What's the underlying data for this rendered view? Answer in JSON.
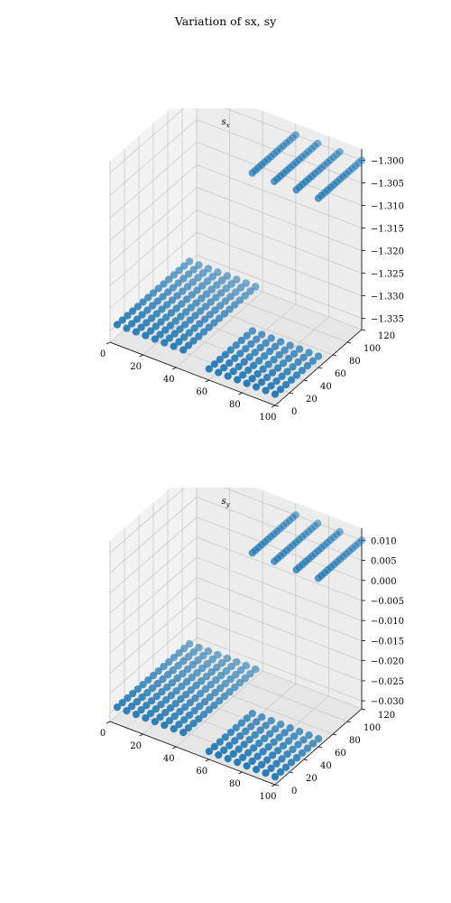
{
  "figure": {
    "title": "Variation of sx, sy"
  },
  "chart_data": [
    {
      "type": "scatter",
      "projection": "3d",
      "title": "s_x",
      "title_display": "sx",
      "xlim": [
        0,
        100
      ],
      "ylim": [
        0,
        120
      ],
      "zlim": [
        -1.3375,
        -1.2975
      ],
      "xticks": [
        0,
        20,
        40,
        60,
        80,
        100
      ],
      "yticks": [
        0,
        20,
        40,
        60,
        80,
        100,
        120
      ],
      "zticks": [
        "−1.300",
        "−1.305",
        "−1.310",
        "−1.315",
        "−1.320",
        "−1.325",
        "−1.330",
        "−1.335"
      ],
      "ztick_values": [
        -1.3,
        -1.305,
        -1.31,
        -1.315,
        -1.32,
        -1.325,
        -1.33,
        -1.335
      ],
      "grid": true,
      "marker_color": "#1f77b4",
      "clusters": [
        {
          "x_range": [
            0,
            40
          ],
          "y_range": [
            10,
            110
          ],
          "z": -1.335,
          "nx": 8,
          "ny": 15
        },
        {
          "x_range": [
            60,
            100
          ],
          "y_range": [
            0,
            60
          ],
          "z": -1.335,
          "nx": 8,
          "ny": 9
        },
        {
          "x_range": [
            60,
            100
          ],
          "y_range": [
            60,
            120
          ],
          "z": -1.3,
          "nx": 4,
          "ny": 15
        }
      ]
    },
    {
      "type": "scatter",
      "projection": "3d",
      "title": "s_y",
      "title_display": "sy",
      "xlim": [
        0,
        100
      ],
      "ylim": [
        0,
        120
      ],
      "zlim": [
        -0.032,
        0.013
      ],
      "xticks": [
        0,
        20,
        40,
        60,
        80,
        100
      ],
      "yticks": [
        0,
        20,
        40,
        60,
        80,
        100,
        120
      ],
      "zticks": [
        "0.010",
        "0.005",
        "0.000",
        "−0.005",
        "−0.010",
        "−0.015",
        "−0.020",
        "−0.025",
        "−0.030"
      ],
      "ztick_values": [
        0.01,
        0.005,
        0.0,
        -0.005,
        -0.01,
        -0.015,
        -0.02,
        -0.025,
        -0.03
      ],
      "grid": true,
      "marker_color": "#1f77b4",
      "clusters": [
        {
          "x_range": [
            0,
            40
          ],
          "y_range": [
            10,
            110
          ],
          "z": -0.03,
          "nx": 8,
          "ny": 15
        },
        {
          "x_range": [
            60,
            100
          ],
          "y_range": [
            0,
            60
          ],
          "z": -0.03,
          "nx": 8,
          "ny": 9
        },
        {
          "x_range": [
            60,
            100
          ],
          "y_range": [
            60,
            120
          ],
          "z": 0.01,
          "nx": 4,
          "ny": 15
        }
      ]
    }
  ]
}
